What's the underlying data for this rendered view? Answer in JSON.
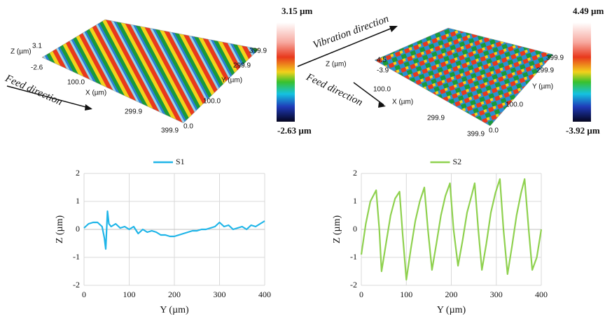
{
  "surfaces": [
    {
      "scale_max": "3.15 µm",
      "scale_min": "-2.63 µm",
      "feed_label": "Feed direction",
      "labels": [
        "Z (µm)",
        "3.1",
        "-2.6",
        "100.0",
        "X (µm)",
        "299.9",
        "399.9",
        "0.0",
        "Y (µm)",
        "399.9",
        "299.9",
        "100.0"
      ]
    },
    {
      "scale_max": "4.49 µm",
      "scale_min": "-3.92 µm",
      "feed_label": "Feed direction",
      "vibration_label": "Vibration direction",
      "labels": [
        "4.5",
        "Z (µm)",
        "-3.9",
        "100.0",
        "X (µm)",
        "299.9",
        "399.9",
        "0.0",
        "399.9",
        "299.9",
        "Y (µm)",
        "100.0"
      ]
    }
  ],
  "chart_data": [
    {
      "type": "line",
      "xlabel": "Y (µm)",
      "ylabel": "Z (µm)",
      "x": [
        0,
        10,
        20,
        30,
        40,
        45,
        48,
        52,
        55,
        60,
        70,
        80,
        90,
        100,
        110,
        120,
        130,
        140,
        150,
        160,
        170,
        180,
        190,
        200,
        210,
        220,
        230,
        240,
        250,
        260,
        270,
        280,
        290,
        300,
        310,
        320,
        330,
        340,
        350,
        360,
        370,
        380,
        390,
        400
      ],
      "series": [
        {
          "name": "S1",
          "color": "#1fb5e8",
          "values": [
            0.05,
            0.2,
            0.25,
            0.25,
            0.1,
            -0.3,
            -0.7,
            0.65,
            0.2,
            0.1,
            0.2,
            0.05,
            0.1,
            0.0,
            0.1,
            -0.15,
            0.0,
            -0.1,
            -0.05,
            -0.1,
            -0.2,
            -0.2,
            -0.25,
            -0.25,
            -0.2,
            -0.15,
            -0.1,
            -0.05,
            -0.05,
            0.0,
            0.0,
            0.05,
            0.1,
            0.25,
            0.1,
            0.15,
            0.0,
            0.05,
            0.1,
            0.0,
            0.15,
            0.1,
            0.2,
            0.3
          ]
        }
      ],
      "xlim": [
        0,
        400
      ],
      "xticks": [
        0,
        100,
        200,
        300,
        400
      ],
      "ylim": [
        -2,
        2
      ],
      "yticks": [
        -2,
        -1,
        0,
        1,
        2
      ],
      "grid": true
    },
    {
      "type": "line",
      "xlabel": "Y (µm)",
      "ylabel": "Z (µm)",
      "x": [
        0,
        10,
        20,
        33,
        40,
        45,
        55,
        65,
        75,
        85,
        92,
        100,
        110,
        120,
        130,
        140,
        148,
        157,
        167,
        177,
        187,
        197,
        205,
        215,
        225,
        235,
        245,
        252,
        260,
        268,
        278,
        288,
        298,
        308,
        316,
        325,
        335,
        345,
        355,
        363,
        372,
        380,
        390,
        400
      ],
      "series": [
        {
          "name": "S2",
          "color": "#8fd14f",
          "values": [
            -0.9,
            0.2,
            1.0,
            1.4,
            0.0,
            -1.5,
            -0.5,
            0.5,
            1.1,
            1.35,
            -0.2,
            -1.8,
            -0.7,
            0.3,
            1.0,
            1.5,
            0.0,
            -1.45,
            -0.5,
            0.5,
            1.2,
            1.65,
            0.0,
            -1.3,
            -0.4,
            0.6,
            1.2,
            1.65,
            0.0,
            -1.45,
            -0.5,
            0.6,
            1.3,
            1.8,
            0.0,
            -1.6,
            -0.6,
            0.5,
            1.3,
            1.8,
            0.0,
            -1.45,
            -1.0,
            0.0
          ]
        }
      ],
      "xlim": [
        0,
        400
      ],
      "xticks": [
        0,
        100,
        200,
        300,
        400
      ],
      "ylim": [
        -2,
        2
      ],
      "yticks": [
        -2,
        -1,
        0,
        1,
        2
      ],
      "grid": true
    }
  ]
}
